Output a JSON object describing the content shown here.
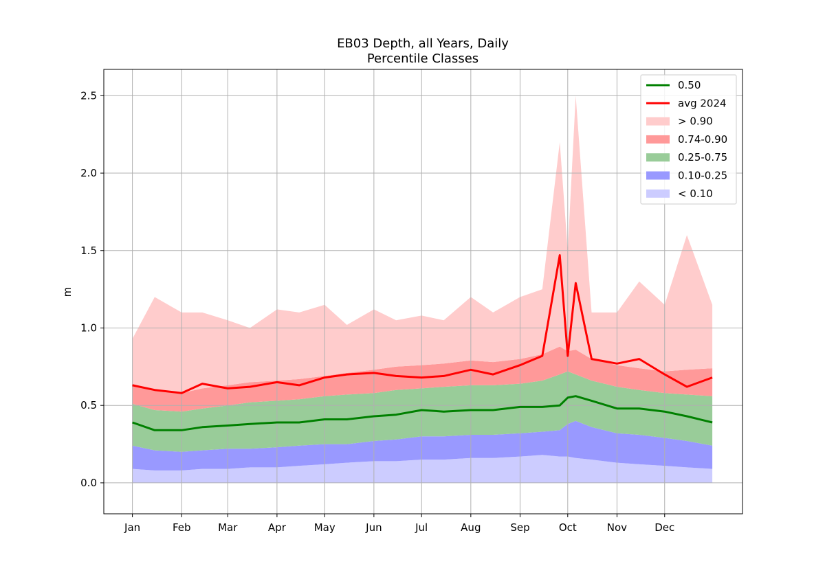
{
  "chart_data": {
    "type": "area",
    "title": "EB03 Depth, all Years, Daily",
    "subtitle": "Percentile Classes",
    "xlabel": "",
    "ylabel": "m",
    "x_tick_labels": [
      "Jan",
      "Feb",
      "Mar",
      "Apr",
      "May",
      "Jun",
      "Jul",
      "Aug",
      "Sep",
      "Oct",
      "Nov",
      "Dec"
    ],
    "x_tick_days": [
      1,
      32,
      61,
      92,
      122,
      153,
      183,
      214,
      245,
      275,
      306,
      336
    ],
    "xlim": [
      -17,
      385
    ],
    "ylim": [
      -0.2,
      2.67
    ],
    "y_ticks": [
      0.0,
      0.5,
      1.0,
      1.5,
      2.0,
      2.5
    ],
    "y_tick_labels": [
      "0.0",
      "0.5",
      "1.0",
      "1.5",
      "2.0",
      "2.5"
    ],
    "grid": true,
    "legend_position": "top-right",
    "legend": [
      {
        "label": "0.50",
        "kind": "line",
        "color": "#008000"
      },
      {
        "label": "avg 2024",
        "kind": "line",
        "color": "#ff0000"
      },
      {
        "label": "> 0.90",
        "kind": "patch",
        "color": "#ffcccc"
      },
      {
        "label": "0.74-0.90",
        "kind": "patch",
        "color": "#ff9999"
      },
      {
        "label": "0.25-0.75",
        "kind": "patch",
        "color": "#99cc99"
      },
      {
        "label": "0.10-0.25",
        "kind": "patch",
        "color": "#9999ff"
      },
      {
        "label": "< 0.10",
        "kind": "patch",
        "color": "#ccccff"
      }
    ],
    "x_days": [
      1,
      15,
      32,
      45,
      61,
      75,
      92,
      106,
      122,
      136,
      153,
      167,
      183,
      197,
      214,
      228,
      245,
      259,
      270,
      275,
      280,
      290,
      306,
      320,
      336,
      350,
      366
    ],
    "series": [
      {
        "name": "0.50",
        "values": [
          0.39,
          0.34,
          0.34,
          0.36,
          0.37,
          0.38,
          0.39,
          0.39,
          0.41,
          0.41,
          0.43,
          0.44,
          0.47,
          0.46,
          0.47,
          0.47,
          0.49,
          0.49,
          0.5,
          0.55,
          0.56,
          0.53,
          0.48,
          0.48,
          0.46,
          0.43,
          0.39
        ]
      },
      {
        "name": "avg 2024",
        "values": [
          0.63,
          0.6,
          0.58,
          0.64,
          0.61,
          0.62,
          0.65,
          0.63,
          0.68,
          0.7,
          0.71,
          0.69,
          0.68,
          0.69,
          0.73,
          0.7,
          0.76,
          0.82,
          1.47,
          0.82,
          1.29,
          0.8,
          0.77,
          0.8,
          0.7,
          0.62,
          0.68
        ]
      },
      {
        "name": "bound_p10",
        "values": [
          0.09,
          0.08,
          0.08,
          0.09,
          0.09,
          0.1,
          0.1,
          0.11,
          0.12,
          0.13,
          0.14,
          0.14,
          0.15,
          0.15,
          0.16,
          0.16,
          0.17,
          0.18,
          0.17,
          0.17,
          0.16,
          0.15,
          0.13,
          0.12,
          0.11,
          0.1,
          0.09
        ]
      },
      {
        "name": "bound_p25",
        "values": [
          0.24,
          0.21,
          0.2,
          0.21,
          0.22,
          0.22,
          0.23,
          0.24,
          0.25,
          0.25,
          0.27,
          0.28,
          0.3,
          0.3,
          0.31,
          0.31,
          0.32,
          0.33,
          0.34,
          0.38,
          0.4,
          0.36,
          0.32,
          0.31,
          0.29,
          0.27,
          0.24
        ]
      },
      {
        "name": "bound_p75",
        "values": [
          0.51,
          0.47,
          0.46,
          0.48,
          0.5,
          0.52,
          0.53,
          0.54,
          0.56,
          0.57,
          0.58,
          0.6,
          0.61,
          0.62,
          0.63,
          0.63,
          0.64,
          0.66,
          0.7,
          0.72,
          0.7,
          0.66,
          0.62,
          0.6,
          0.58,
          0.57,
          0.56
        ]
      },
      {
        "name": "bound_p90",
        "values": [
          0.64,
          0.6,
          0.58,
          0.61,
          0.63,
          0.65,
          0.66,
          0.67,
          0.69,
          0.71,
          0.73,
          0.75,
          0.76,
          0.77,
          0.79,
          0.78,
          0.8,
          0.83,
          0.88,
          0.85,
          0.86,
          0.8,
          0.76,
          0.74,
          0.72,
          0.73,
          0.74
        ]
      },
      {
        "name": "bound_max",
        "values": [
          0.93,
          1.2,
          1.1,
          1.1,
          1.05,
          1.0,
          1.12,
          1.1,
          1.15,
          1.02,
          1.12,
          1.05,
          1.08,
          1.05,
          1.2,
          1.1,
          1.2,
          1.25,
          2.2,
          1.5,
          2.5,
          1.1,
          1.1,
          1.3,
          1.15,
          1.6,
          1.15
        ]
      }
    ]
  }
}
